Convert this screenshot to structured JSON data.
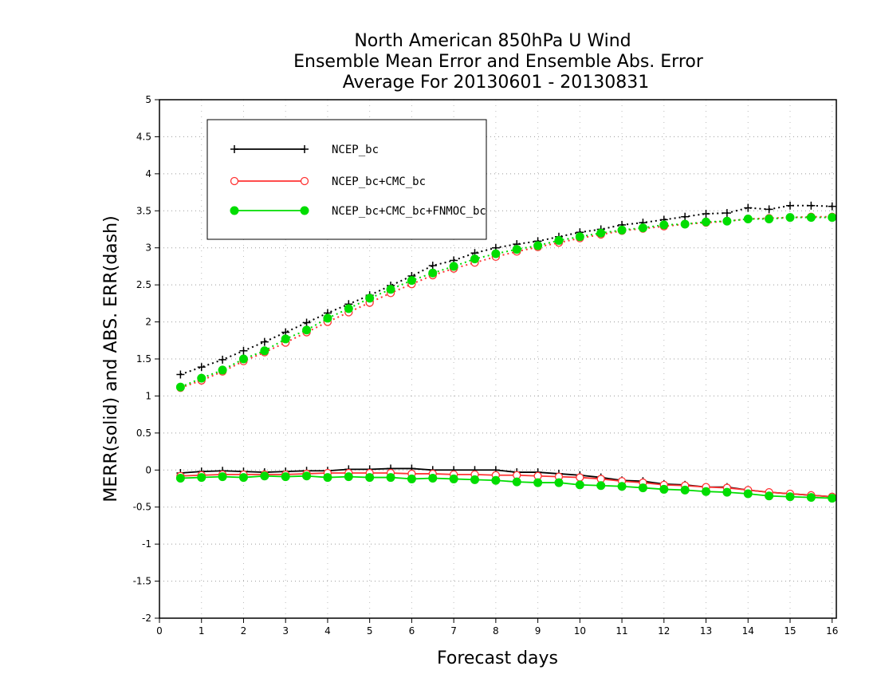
{
  "chart_data": {
    "type": "line",
    "title": [
      "North American 850hPa U Wind",
      "Ensemble Mean Error and Ensemble Abs. Error",
      "Average For 20130601 - 20130831"
    ],
    "xlabel": "Forecast days",
    "ylabel": "MERR(solid) and ABS. ERR(dash)",
    "xlim": [
      0,
      16.1
    ],
    "ylim": [
      -2,
      5
    ],
    "xticks": [
      "0",
      "1",
      "2",
      "3",
      "4",
      "5",
      "6",
      "7",
      "8",
      "9",
      "10",
      "11",
      "12",
      "13",
      "14",
      "15",
      "16"
    ],
    "yticks": [
      "-2",
      "-1.5",
      "-1",
      "-0.5",
      "0",
      "0.5",
      "1",
      "1.5",
      "2",
      "2.5",
      "3",
      "3.5",
      "4",
      "4.5",
      "5"
    ],
    "grid": true,
    "legend_position": "top-left",
    "x": [
      0.5,
      1,
      1.5,
      2,
      2.5,
      3,
      3.5,
      4,
      4.5,
      5,
      5.5,
      6,
      6.5,
      7,
      7.5,
      8,
      8.5,
      9,
      9.5,
      10,
      10.5,
      11,
      11.5,
      12,
      12.5,
      13,
      13.5,
      14,
      14.5,
      15,
      15.5,
      16
    ],
    "series": [
      {
        "name": "NCEP_bc",
        "color": "#000000",
        "marker": "plus",
        "merr": [
          -0.04,
          -0.02,
          -0.01,
          -0.02,
          -0.03,
          -0.02,
          -0.01,
          -0.01,
          0.01,
          0.01,
          0.02,
          0.02,
          0.0,
          0.0,
          0.0,
          0.0,
          -0.03,
          -0.03,
          -0.05,
          -0.07,
          -0.1,
          -0.14,
          -0.15,
          -0.19,
          -0.2,
          -0.23,
          -0.23,
          -0.27,
          -0.3,
          -0.32,
          -0.34,
          -0.36
        ],
        "abserr": [
          1.29,
          1.39,
          1.49,
          1.61,
          1.73,
          1.86,
          1.99,
          2.12,
          2.24,
          2.36,
          2.49,
          2.62,
          2.76,
          2.83,
          2.93,
          3.0,
          3.05,
          3.09,
          3.15,
          3.21,
          3.25,
          3.31,
          3.34,
          3.38,
          3.42,
          3.46,
          3.47,
          3.54,
          3.52,
          3.57,
          3.57,
          3.56
        ]
      },
      {
        "name": "NCEP_bc+CMC_bc",
        "color": "#ff3333",
        "marker": "circle-open",
        "merr": [
          -0.08,
          -0.07,
          -0.06,
          -0.06,
          -0.06,
          -0.06,
          -0.05,
          -0.04,
          -0.04,
          -0.04,
          -0.04,
          -0.05,
          -0.05,
          -0.06,
          -0.06,
          -0.07,
          -0.07,
          -0.08,
          -0.09,
          -0.1,
          -0.12,
          -0.15,
          -0.17,
          -0.2,
          -0.21,
          -0.23,
          -0.24,
          -0.27,
          -0.3,
          -0.32,
          -0.34,
          -0.36
        ],
        "abserr": [
          1.11,
          1.21,
          1.33,
          1.47,
          1.59,
          1.72,
          1.86,
          2.0,
          2.13,
          2.26,
          2.39,
          2.51,
          2.63,
          2.72,
          2.8,
          2.88,
          2.95,
          3.01,
          3.07,
          3.13,
          3.18,
          3.23,
          3.26,
          3.29,
          3.32,
          3.34,
          3.36,
          3.39,
          3.4,
          3.41,
          3.42,
          3.42
        ]
      },
      {
        "name": "NCEP_bc+CMC_bc+FNMOC_bc",
        "color": "#00dd00",
        "marker": "circle-filled",
        "merr": [
          -0.11,
          -0.1,
          -0.09,
          -0.1,
          -0.08,
          -0.09,
          -0.08,
          -0.1,
          -0.09,
          -0.1,
          -0.1,
          -0.12,
          -0.11,
          -0.12,
          -0.13,
          -0.14,
          -0.16,
          -0.17,
          -0.17,
          -0.2,
          -0.21,
          -0.22,
          -0.24,
          -0.26,
          -0.27,
          -0.29,
          -0.3,
          -0.32,
          -0.35,
          -0.36,
          -0.37,
          -0.38
        ],
        "abserr": [
          1.12,
          1.24,
          1.35,
          1.5,
          1.61,
          1.77,
          1.89,
          2.05,
          2.18,
          2.32,
          2.44,
          2.56,
          2.66,
          2.75,
          2.85,
          2.92,
          2.98,
          3.03,
          3.1,
          3.15,
          3.2,
          3.24,
          3.27,
          3.31,
          3.32,
          3.35,
          3.36,
          3.39,
          3.39,
          3.41,
          3.41,
          3.41
        ]
      }
    ]
  }
}
